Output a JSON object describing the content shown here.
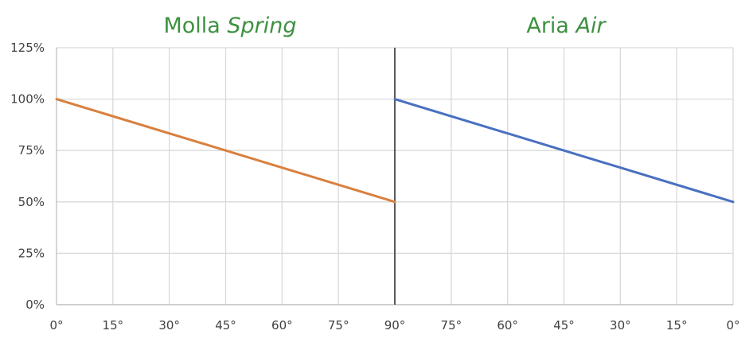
{
  "colors": {
    "title": "#3d9140",
    "grid": "#d9d9d9",
    "axis": "#bfbfbf",
    "divider": "#262626",
    "tick_text": "#404040",
    "spring_line": "#d9803f",
    "air_line": "#4a70c0"
  },
  "chart_data": [
    {
      "type": "line",
      "title": "Molla",
      "title_italic": "Spring",
      "xlabel": "",
      "ylabel": "",
      "x_ticks": [
        "0°",
        "15°",
        "30°",
        "45°",
        "60°",
        "75°",
        "90°"
      ],
      "x_values": [
        0,
        90
      ],
      "y_values": [
        100,
        50
      ],
      "xlim": [
        0,
        90
      ],
      "y_ticks": [
        "0%",
        "25%",
        "50%",
        "75%",
        "100%",
        "125%"
      ],
      "ylim": [
        0,
        125
      ],
      "grid": true
    },
    {
      "type": "line",
      "title": "Aria",
      "title_italic": "Air",
      "xlabel": "",
      "ylabel": "",
      "x_ticks": [
        "90°",
        "75°",
        "60°",
        "45°",
        "30°",
        "15°",
        "0°"
      ],
      "x_values": [
        90,
        0
      ],
      "y_values": [
        100,
        50
      ],
      "xlim": [
        90,
        0
      ],
      "ylim": [
        0,
        125
      ],
      "grid": true
    }
  ]
}
